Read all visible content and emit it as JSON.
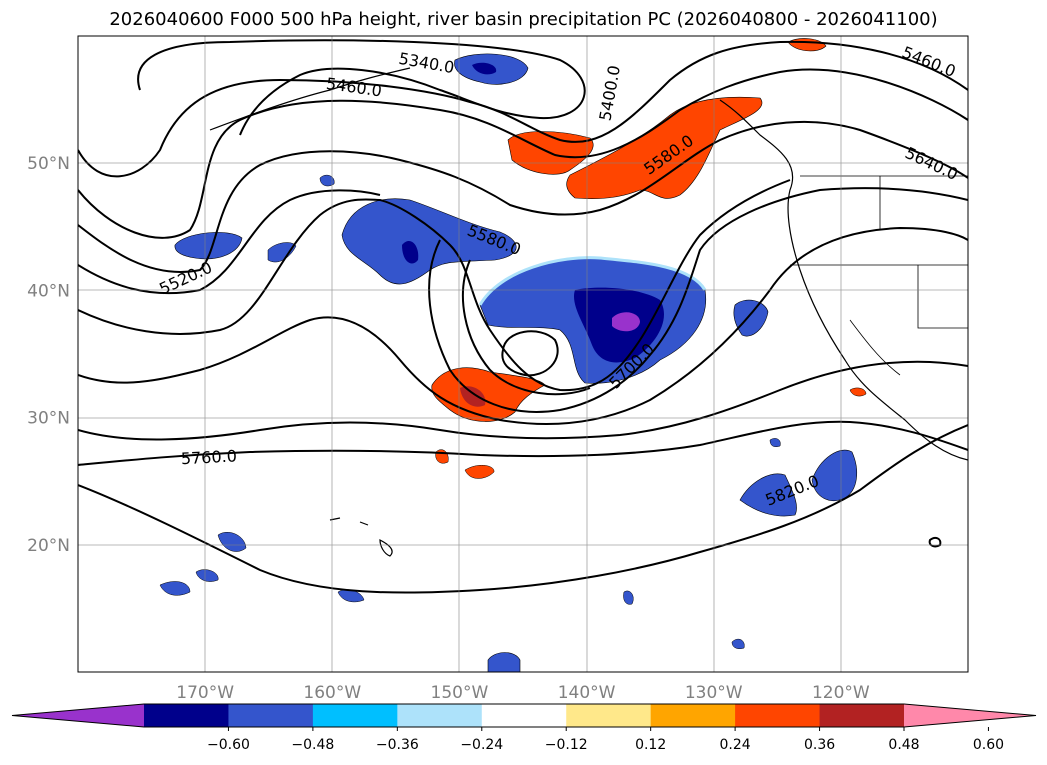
{
  "title": "2026040600 F000 500 hPa height, river basin precipitation PC (2026040800 - 2026041100)",
  "map": {
    "lon_range": [
      -180,
      -110
    ],
    "lat_range": [
      10,
      60
    ],
    "lat_ticks": [
      {
        "value": 50,
        "label": "50°N"
      },
      {
        "value": 40,
        "label": "40°N"
      },
      {
        "value": 30,
        "label": "30°N"
      },
      {
        "value": 20,
        "label": "20°N"
      }
    ],
    "lon_ticks": [
      {
        "value": -170,
        "label": "170°W"
      },
      {
        "value": -160,
        "label": "160°W"
      },
      {
        "value": -150,
        "label": "150°W"
      },
      {
        "value": -140,
        "label": "140°W"
      },
      {
        "value": -130,
        "label": "130°W"
      },
      {
        "value": -120,
        "label": "120°W"
      }
    ],
    "grid": true,
    "height_contour_labels": [
      {
        "text": "5460.0",
        "lon": -158.3,
        "lat": 55.9,
        "angle": 8
      },
      {
        "text": "5340.0",
        "lon": -152.6,
        "lat": 57.8,
        "angle": 10
      },
      {
        "text": "5400.0",
        "lon": -138.1,
        "lat": 55.5,
        "angle": -80
      },
      {
        "text": "5460.0",
        "lon": -113.1,
        "lat": 57.9,
        "angle": 22
      },
      {
        "text": "5580.0",
        "lon": -133.5,
        "lat": 50.6,
        "angle": -35
      },
      {
        "text": "5640.0",
        "lon": -112.9,
        "lat": 49.9,
        "angle": 25
      },
      {
        "text": "5580.0",
        "lon": -147.3,
        "lat": 43.9,
        "angle": 22
      },
      {
        "text": "5520.0",
        "lon": -171.5,
        "lat": 40.9,
        "angle": -25
      },
      {
        "text": "5700.0",
        "lon": -136.4,
        "lat": 34.0,
        "angle": -45
      },
      {
        "text": "5760.0",
        "lon": -169.7,
        "lat": 26.8,
        "angle": -3
      },
      {
        "text": "5820.0",
        "lon": -123.8,
        "lat": 24.2,
        "angle": -22
      }
    ]
  },
  "colorbar": {
    "colors": [
      "#9932cc",
      "#00008b",
      "#3455cc",
      "#00bfff",
      "#ade2fa",
      "#ffffff",
      "#ffe88a",
      "#ffa500",
      "#ff4500",
      "#b22222",
      "#ff88aa"
    ],
    "tick_labels": [
      "−0.60",
      "−0.48",
      "−0.36",
      "−0.24",
      "−0.12",
      "0.12",
      "0.24",
      "0.36",
      "0.48",
      "0.60"
    ]
  }
}
